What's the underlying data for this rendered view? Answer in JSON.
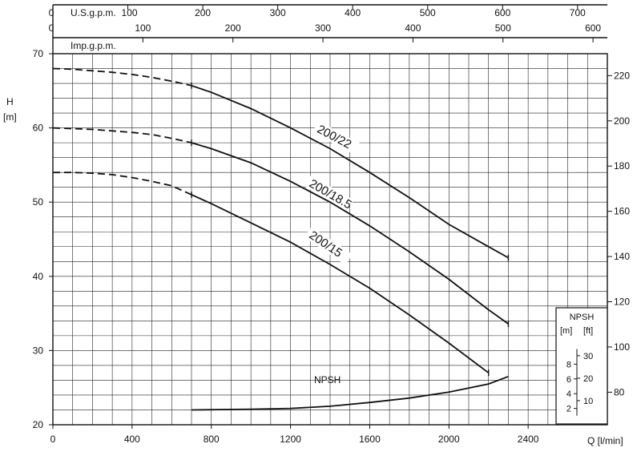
{
  "chart_data": {
    "type": "line",
    "title": "",
    "xlabel": "Q [l/min]",
    "ylabel": "H [m]",
    "xlim": [
      0,
      2800
    ],
    "ylim": [
      20,
      70
    ],
    "grid": true,
    "x_ticks": [
      0,
      400,
      800,
      1200,
      1600,
      2000,
      2400
    ],
    "y_ticks": [
      20,
      30,
      40,
      50,
      60,
      70
    ],
    "y_right": {
      "label": "",
      "ticks": [
        80,
        100,
        120,
        140,
        160,
        180,
        200,
        220
      ],
      "range_ft": [
        65.6,
        229.7
      ]
    },
    "top_axis_usgpm": {
      "label": "U.S.g.p.m.",
      "ticks": [
        0,
        100,
        200,
        300,
        400,
        500,
        600,
        700
      ]
    },
    "top_axis_impgpm": {
      "label": "Imp.g.p.m.",
      "ticks": [
        0,
        100,
        200,
        300,
        400,
        500,
        600
      ]
    },
    "series": [
      {
        "name": "200/22",
        "dashed_x": [
          0,
          100,
          200,
          300,
          400,
          500,
          600,
          700
        ],
        "dashed_y": [
          68,
          67.9,
          67.7,
          67.5,
          67.2,
          66.8,
          66.3,
          65.7
        ],
        "x": [
          700,
          800,
          1000,
          1200,
          1400,
          1600,
          1800,
          2000,
          2200,
          2300
        ],
        "y": [
          65.7,
          64.8,
          62.6,
          60.0,
          57.2,
          54.0,
          50.6,
          47.0,
          44.0,
          42.5
        ]
      },
      {
        "name": "200/18.5",
        "dashed_x": [
          0,
          100,
          200,
          300,
          400,
          500,
          600,
          700
        ],
        "dashed_y": [
          60,
          59.9,
          59.8,
          59.6,
          59.4,
          59.1,
          58.6,
          58.0
        ],
        "x": [
          700,
          800,
          1000,
          1200,
          1400,
          1600,
          1800,
          2000,
          2200,
          2300
        ],
        "y": [
          58.0,
          57.2,
          55.3,
          52.8,
          50.0,
          46.8,
          43.3,
          39.6,
          35.5,
          33.6
        ]
      },
      {
        "name": "200/15",
        "dashed_x": [
          0,
          100,
          200,
          300,
          400,
          500,
          600,
          700
        ],
        "dashed_y": [
          54,
          54,
          53.9,
          53.7,
          53.3,
          52.8,
          52.2,
          51.0
        ],
        "x": [
          700,
          800,
          1000,
          1200,
          1400,
          1600,
          1800,
          2000,
          2200
        ],
        "y": [
          51.0,
          49.8,
          47.2,
          44.6,
          41.6,
          38.4,
          34.8,
          31.0,
          27.0
        ]
      }
    ],
    "npsh": {
      "name": "NPSH",
      "x": [
        700,
        1000,
        1200,
        1400,
        1600,
        1800,
        2000,
        2200,
        2300
      ],
      "y": [
        22.0,
        22.1,
        22.2,
        22.5,
        23.0,
        23.6,
        24.4,
        25.5,
        26.5
      ],
      "box_title": "NPSH",
      "unit_m": "[m]",
      "unit_ft": "[ft]",
      "ticks_m": [
        2,
        4,
        6,
        8
      ],
      "ticks_ft": [
        10,
        20,
        30
      ]
    },
    "labels": {
      "h": "H",
      "m_unit": "[m]",
      "us": "U.S.g.p.m.",
      "imp": "Imp.g.p.m.",
      "q": "Q [l/min]"
    }
  }
}
